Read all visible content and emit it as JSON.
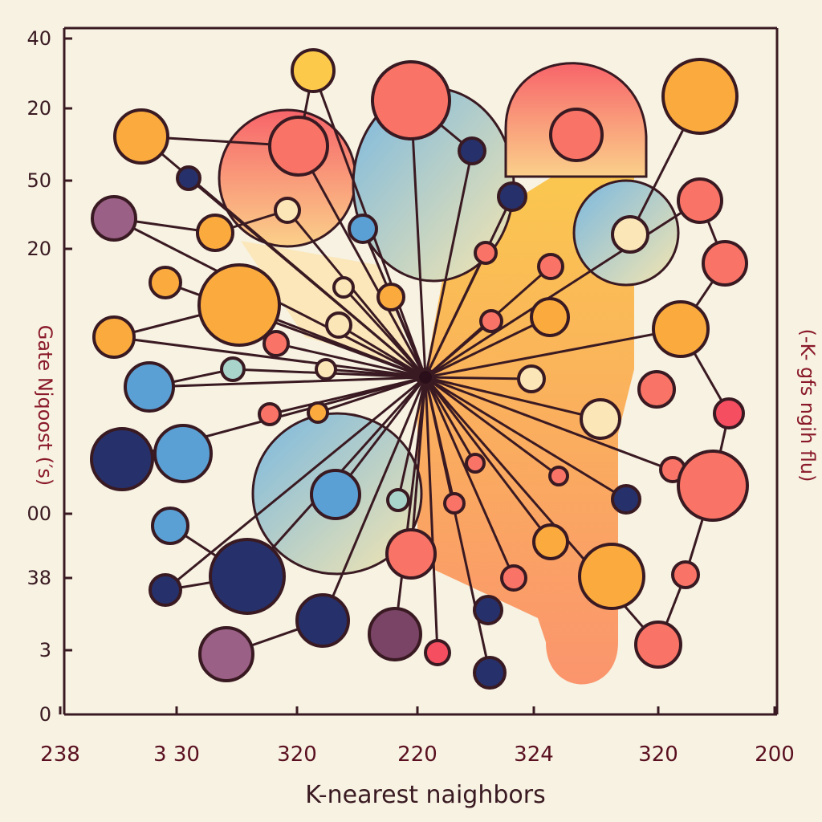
{
  "axes": {
    "y_labels": [
      "40",
      "20",
      "50",
      "20",
      "00",
      "38",
      "3",
      "0"
    ],
    "x_labels": [
      "238",
      "3 30",
      "320",
      "220",
      "324",
      "320",
      "200"
    ],
    "x_title": "K-nearest naighbors",
    "y_title": "Gate Njqoost (′s)",
    "y2_title": "(-K- gfs ngih flu)"
  }
}
